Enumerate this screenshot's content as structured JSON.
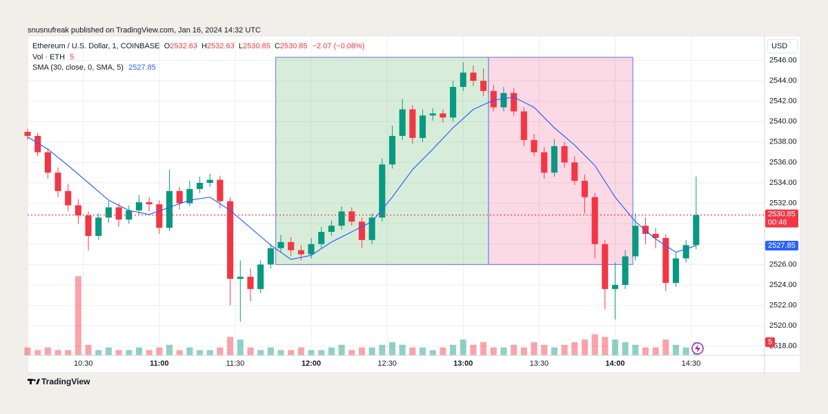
{
  "header": {
    "publisher": "snusnufreak published on TradingView.com, Jan 16, 2024 14:32 UTC"
  },
  "footer": {
    "brand": "TradingView"
  },
  "chart_data": {
    "type": "candlestick",
    "currency": "USD",
    "legend": {
      "symbol": "Ethereum / U.S. Dollar, 1, COINBASE",
      "ohlc": [
        {
          "label": "O",
          "value": 2532.63
        },
        {
          "label": "H",
          "value": 2532.63
        },
        {
          "label": "L",
          "value": 2530.85
        },
        {
          "label": "C",
          "value": 2530.85
        }
      ],
      "change": "−2.07 (−0.08%)"
    },
    "x": [
      "10:08",
      "10:12",
      "10:16",
      "10:20",
      "10:24",
      "10:28",
      "10:32",
      "10:36",
      "10:40",
      "10:44",
      "10:48",
      "10:52",
      "10:56",
      "11:00",
      "11:04",
      "11:08",
      "11:12",
      "11:16",
      "11:20",
      "11:24",
      "11:28",
      "11:32",
      "11:36",
      "11:40",
      "11:44",
      "11:48",
      "11:52",
      "11:56",
      "12:00",
      "12:04",
      "12:08",
      "12:12",
      "12:16",
      "12:20",
      "12:24",
      "12:28",
      "12:32",
      "12:36",
      "12:40",
      "12:44",
      "12:48",
      "12:52",
      "12:56",
      "13:00",
      "13:04",
      "13:08",
      "13:12",
      "13:16",
      "13:20",
      "13:24",
      "13:28",
      "13:32",
      "13:36",
      "13:40",
      "13:44",
      "13:48",
      "13:52",
      "13:56",
      "14:00",
      "14:04",
      "14:08",
      "14:12",
      "14:16",
      "14:20",
      "14:24",
      "14:28",
      "14:32"
    ],
    "open": [
      2539.0,
      2538.6,
      2537.0,
      2535.0,
      2533.2,
      2531.8,
      2530.8,
      2528.8,
      2530.6,
      2531.6,
      2530.4,
      2531.3,
      2532.1,
      2531.9,
      2529.6,
      2533.2,
      2532.0,
      2533.4,
      2534.0,
      2534.3,
      2532.2,
      2524.6,
      2524.8,
      2523.6,
      2526.0,
      2527.6,
      2528.2,
      2527.4,
      2527.0,
      2528.0,
      2529.2,
      2529.8,
      2531.2,
      2530.2,
      2528.4,
      2530.6,
      2535.8,
      2538.6,
      2541.2,
      2538.4,
      2540.6,
      2540.8,
      2540.4,
      2543.4,
      2544.8,
      2544.0,
      2543.0,
      2541.4,
      2542.8,
      2541.0,
      2538.2,
      2537.0,
      2535.0,
      2537.6,
      2536.0,
      2534.2,
      2532.6,
      2528.0,
      2523.6,
      2524.0,
      2526.8,
      2529.8,
      2529.0,
      2528.6,
      2524.2,
      2526.6,
      2527.9
    ],
    "high": [
      2539.3,
      2538.9,
      2537.4,
      2535.5,
      2533.9,
      2532.4,
      2531.2,
      2531.0,
      2532.2,
      2532.0,
      2531.8,
      2532.8,
      2532.6,
      2532.3,
      2535.3,
      2533.6,
      2534.2,
      2534.6,
      2534.9,
      2534.7,
      2532.6,
      2526.4,
      2525.6,
      2526.4,
      2528.0,
      2528.9,
      2528.7,
      2527.9,
      2528.6,
      2529.7,
      2530.3,
      2531.7,
      2531.6,
      2530.6,
      2531.0,
      2536.4,
      2539.6,
      2542.2,
      2541.6,
      2541.2,
      2541.3,
      2541.2,
      2544.0,
      2545.8,
      2545.5,
      2545.2,
      2543.6,
      2543.4,
      2543.3,
      2541.4,
      2538.8,
      2537.5,
      2538.3,
      2538.0,
      2536.6,
      2534.8,
      2533.0,
      2528.4,
      2526.2,
      2527.4,
      2531.0,
      2530.6,
      2529.6,
      2529.0,
      2527.2,
      2528.4,
      2534.6
    ],
    "low": [
      2538.2,
      2536.6,
      2534.4,
      2532.6,
      2531.2,
      2530.0,
      2527.4,
      2528.4,
      2530.1,
      2529.7,
      2530.0,
      2530.9,
      2531.2,
      2529.0,
      2529.3,
      2531.4,
      2531.7,
      2533.0,
      2533.6,
      2531.5,
      2522.0,
      2520.4,
      2522.4,
      2523.2,
      2525.6,
      2527.2,
      2526.8,
      2526.4,
      2526.6,
      2527.6,
      2528.8,
      2529.4,
      2529.8,
      2527.6,
      2528.0,
      2530.2,
      2535.4,
      2538.2,
      2537.8,
      2538.0,
      2540.1,
      2539.9,
      2540.0,
      2543.0,
      2543.5,
      2542.5,
      2541.0,
      2541.0,
      2540.6,
      2537.6,
      2536.6,
      2534.4,
      2534.6,
      2535.5,
      2533.8,
      2531.0,
      2526.6,
      2521.6,
      2520.6,
      2523.6,
      2526.4,
      2528.0,
      2527.6,
      2523.4,
      2523.8,
      2526.2,
      2527.5
    ],
    "close": [
      2538.6,
      2537.0,
      2535.0,
      2533.2,
      2531.8,
      2530.8,
      2528.8,
      2530.6,
      2531.6,
      2530.4,
      2531.3,
      2532.1,
      2531.9,
      2529.6,
      2533.2,
      2532.0,
      2533.4,
      2534.0,
      2534.3,
      2532.2,
      2524.6,
      2524.8,
      2523.6,
      2526.0,
      2527.6,
      2528.2,
      2527.4,
      2527.0,
      2528.0,
      2529.2,
      2529.8,
      2531.2,
      2530.2,
      2528.4,
      2530.6,
      2535.8,
      2538.6,
      2541.2,
      2538.4,
      2540.6,
      2540.8,
      2540.4,
      2543.4,
      2544.8,
      2544.0,
      2543.0,
      2541.4,
      2542.8,
      2541.0,
      2538.2,
      2537.0,
      2535.0,
      2537.6,
      2536.0,
      2534.2,
      2532.6,
      2528.0,
      2523.6,
      2524.0,
      2526.8,
      2529.8,
      2529.0,
      2528.6,
      2524.2,
      2526.6,
      2527.9,
      2530.85
    ],
    "up_color": "#089981",
    "down_color": "#f23645",
    "volume": {
      "name": "Vol · ETH",
      "last": 5,
      "ylim": [
        0,
        34
      ],
      "values": [
        3,
        2,
        3,
        2,
        2,
        30,
        4,
        2,
        3,
        2,
        2,
        3,
        2,
        3,
        4,
        2,
        3,
        2,
        2,
        3,
        7,
        6,
        3,
        2,
        3,
        2,
        2,
        3,
        2,
        2,
        3,
        4,
        2,
        3,
        3,
        4,
        5,
        4,
        3,
        3,
        2,
        3,
        4,
        6,
        4,
        5,
        3,
        3,
        4,
        3,
        5,
        4,
        3,
        4,
        5,
        6,
        8,
        7,
        6,
        5,
        4,
        3,
        3,
        6,
        4,
        3,
        5
      ]
    },
    "sma": {
      "name": "SMA (30, close, 0, SMA, 5)",
      "last": 2527.85,
      "color": "#2962ff",
      "x": [
        "10:08",
        "10:16",
        "10:24",
        "10:32",
        "10:40",
        "10:48",
        "10:56",
        "11:04",
        "11:12",
        "11:20",
        "11:28",
        "11:36",
        "11:44",
        "11:52",
        "12:00",
        "12:08",
        "12:16",
        "12:24",
        "12:32",
        "12:40",
        "12:48",
        "12:56",
        "13:04",
        "13:12",
        "13:20",
        "13:28",
        "13:36",
        "13:44",
        "13:52",
        "14:00",
        "14:08",
        "14:16",
        "14:24",
        "14:32"
      ],
      "values": [
        2538.5,
        2537.3,
        2535.7,
        2534.0,
        2532.3,
        2531.3,
        2530.9,
        2531.6,
        2532.3,
        2532.6,
        2531.3,
        2529.6,
        2527.9,
        2526.5,
        2526.9,
        2528.2,
        2529.2,
        2530.2,
        2532.6,
        2535.3,
        2537.3,
        2539.4,
        2541.2,
        2542.1,
        2542.4,
        2541.4,
        2539.4,
        2537.7,
        2535.7,
        2532.6,
        2530.2,
        2528.5,
        2527.2,
        2527.85
      ]
    },
    "last_price_countdown": "00:46",
    "shapes": [
      {
        "x0": "11:46",
        "x1": "13:10",
        "top": 2546.3,
        "bottom": 2526.0,
        "color": "rgba(76,175,80,0.22)"
      },
      {
        "x0": "13:10",
        "x1": "14:07",
        "top": 2546.3,
        "bottom": 2526.0,
        "color": "rgba(233,30,99,0.17)"
      }
    ],
    "xlim": [
      "10:08",
      "14:59"
    ],
    "xticks": [
      "10:30",
      "11:00",
      "11:30",
      "12:00",
      "12:30",
      "13:00",
      "13:30",
      "14:00",
      "14:30"
    ],
    "ylim": [
      2517.1,
      2548.4
    ],
    "yticks": [
      {
        "value": 2518,
        "label": "2518.00"
      },
      {
        "value": 2520,
        "label": "2520.00"
      },
      {
        "value": 2522,
        "label": "2522.00"
      },
      {
        "value": 2524,
        "label": "2524.00"
      },
      {
        "value": 2526,
        "label": "2526.00"
      },
      {
        "value": 2528,
        "label": "2528.00"
      },
      {
        "value": 2530,
        "label": "2530.00"
      },
      {
        "value": 2532,
        "label": "2532.00"
      },
      {
        "value": 2534,
        "label": "2534.00"
      },
      {
        "value": 2536,
        "label": "2536.00"
      },
      {
        "value": 2538,
        "label": "2538.00"
      },
      {
        "value": 2540,
        "label": "2540.00"
      },
      {
        "value": 2542,
        "label": "2542.00"
      },
      {
        "value": 2544,
        "label": "2544.00"
      },
      {
        "value": 2546,
        "label": "2546.00"
      }
    ],
    "grid": true
  }
}
